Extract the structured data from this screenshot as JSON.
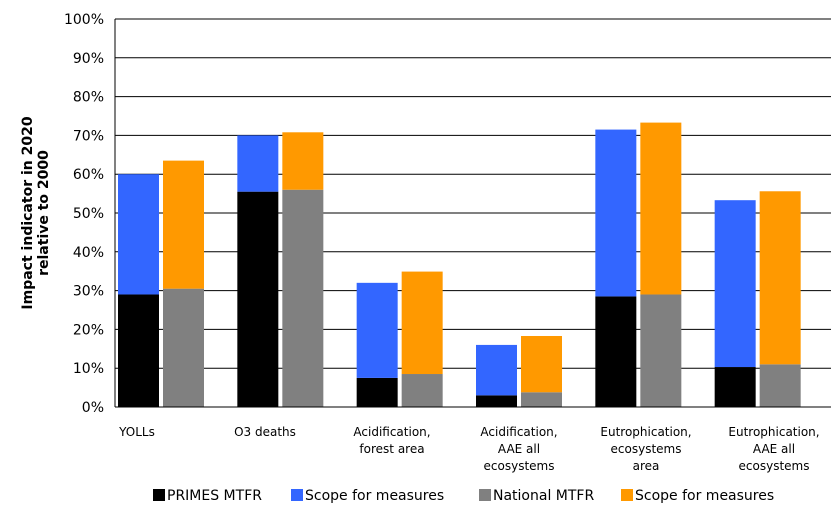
{
  "chart_data": {
    "type": "bar",
    "stacked": true,
    "title": "",
    "xlabel": "",
    "ylabel": "Impact indicator in 2020 relative to 2000",
    "ylabel_lines": [
      "Impact indicator in 2020",
      "relative to 2000"
    ],
    "ylim": [
      0,
      100
    ],
    "yticks": [
      0,
      10,
      20,
      30,
      40,
      50,
      60,
      70,
      80,
      90,
      100
    ],
    "ytick_labels": [
      "0%",
      "10%",
      "20%",
      "30%",
      "40%",
      "50%",
      "60%",
      "70%",
      "80%",
      "90%",
      "100%"
    ],
    "grid": true,
    "legend_position": "bottom",
    "categories": [
      "YOLLs",
      "O3 deaths",
      "Acidification, forest area",
      "Acidification, AAE all ecosystems",
      "Eutrophication, ecosystems area",
      "Eutrophication, AAE all ecosystems"
    ],
    "category_lines": [
      [
        "YOLLs"
      ],
      [
        "O3 deaths"
      ],
      [
        "Acidification,",
        "forest area"
      ],
      [
        "Acidification,",
        "AAE all",
        "ecosystems"
      ],
      [
        "Eutrophication,",
        "ecosystems",
        "area"
      ],
      [
        "Eutrophication,",
        "AAE all",
        "ecosystems"
      ]
    ],
    "stacks": [
      {
        "segments": [
          {
            "name": "PRIMES MTFR",
            "color": "#000000",
            "values": [
              29,
              55.5,
              7.5,
              3,
              28.5,
              10.3
            ]
          },
          {
            "name": "Scope for measures",
            "color": "#3366ff",
            "values": [
              31,
              14.5,
              24.5,
              13,
              43,
              43
            ]
          }
        ]
      },
      {
        "segments": [
          {
            "name": "National MTFR",
            "color": "#808080",
            "values": [
              30.5,
              56,
              8.5,
              3.8,
              29,
              11
            ]
          },
          {
            "name": "Scope for measures",
            "color": "#ff9900",
            "values": [
              33,
              14.8,
              26.4,
              14.5,
              44.3,
              44.6
            ]
          }
        ]
      }
    ],
    "legend": [
      {
        "name": "PRIMES MTFR",
        "color": "#000000"
      },
      {
        "name": "Scope for measures",
        "color": "#3366ff"
      },
      {
        "name": "National MTFR",
        "color": "#808080"
      },
      {
        "name": "Scope for measures",
        "color": "#ff9900"
      }
    ]
  }
}
